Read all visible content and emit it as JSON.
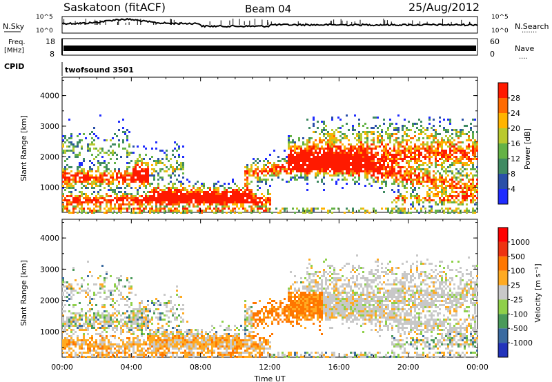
{
  "header": {
    "title": "Saskatoon (fitACF)",
    "beam": "Beam 04",
    "date": "25/Aug/2012"
  },
  "top_strip": {
    "nsky_label": "N.Sky",
    "nsearch_label": "N.Search",
    "nsearch_dots": "·······",
    "freq_label": "Freq.",
    "freq_unit": "[MHz]",
    "freq_ticks": [
      "18",
      "8"
    ],
    "nave_label": "Nave",
    "nave_dots": "····",
    "nave_ticks": [
      "60",
      "0"
    ],
    "count_ticks": [
      "10^5",
      "10^0"
    ],
    "cpid_label": "CPID",
    "cpid_value": "twofsound 3501"
  },
  "chart_data": [
    {
      "type": "heatmap",
      "panel": "power",
      "ylabel": "Slant Range [km]",
      "ylim": [
        180,
        4600
      ],
      "yticks": [
        "1000",
        "2000",
        "3000",
        "4000"
      ],
      "xlim": [
        0,
        24
      ],
      "colorbar": {
        "label": "Power [dB]",
        "ticks": [
          "4",
          "8",
          "12",
          "16",
          "20",
          "24",
          "28"
        ],
        "colors": [
          "#1f2cff",
          "#2a50a8",
          "#3f8a62",
          "#64b246",
          "#b9c92e",
          "#ffb400",
          "#ff6a00",
          "#ff1a00"
        ]
      }
    },
    {
      "type": "heatmap",
      "panel": "velocity",
      "ylabel": "Slant Range [km]",
      "ylim": [
        180,
        4600
      ],
      "yticks": [
        "1000",
        "2000",
        "3000",
        "4000"
      ],
      "xlim": [
        0,
        24
      ],
      "xlabel": "Time UT",
      "xticks": [
        "00:00",
        "04:00",
        "08:00",
        "12:00",
        "16:00",
        "20:00",
        "00:00"
      ],
      "colorbar": {
        "label": "Velocity [m s⁻¹]",
        "ticks": [
          "1000",
          "500",
          "100",
          "25",
          "-25",
          "-100",
          "-500",
          "-1000"
        ],
        "colors": [
          "#2233bb",
          "#3a6aa0",
          "#4a9a5a",
          "#8fd04a",
          "#c8c8c8",
          "#ffaa22",
          "#ff7700",
          "#ee3311",
          "#ff0000"
        ]
      }
    }
  ]
}
